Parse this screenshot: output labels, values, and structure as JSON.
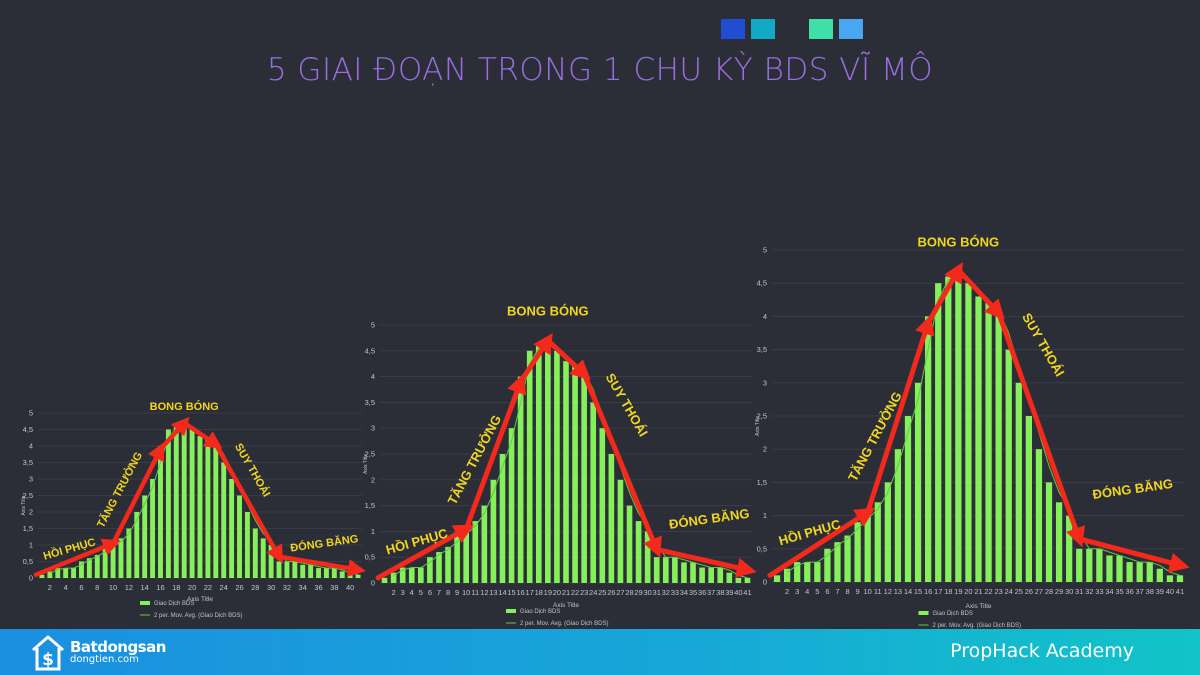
{
  "title": "5 GIAI ĐOẠN TRONG 1 CHU KỲ BDS VĨ MÔ",
  "decor_colors": [
    "#1f4ed3",
    "#11a9c4",
    "#3ee0a8",
    "#4aa6f0"
  ],
  "footer": {
    "brand_line1": "Batdongsan",
    "brand_line2": "dongtien.com",
    "academy": "PropHack Academy"
  },
  "colors": {
    "bar": "#86f05a",
    "avg": "#62c944",
    "arrow": "#f5281c",
    "label": "#f0d61e",
    "grid": "#3e4150",
    "axis_text": "#c2c4cb"
  },
  "chart_data": [
    {
      "type": "bar",
      "categories": [
        1,
        2,
        3,
        4,
        5,
        6,
        7,
        8,
        9,
        10,
        11,
        12,
        13,
        14,
        15,
        16,
        17,
        18,
        19,
        20,
        21,
        22,
        23,
        24,
        25,
        26,
        27,
        28,
        29,
        30,
        31,
        32,
        33,
        34,
        35,
        36,
        37,
        38,
        39,
        40,
        41
      ],
      "tick_labels": [
        "2",
        "4",
        "6",
        "8",
        "10",
        "12",
        "14",
        "16",
        "18",
        "20",
        "22",
        "24",
        "26",
        "28",
        "30",
        "32",
        "34",
        "36",
        "38",
        "40"
      ],
      "values": [
        0.1,
        0.2,
        0.3,
        0.3,
        0.3,
        0.5,
        0.6,
        0.7,
        0.9,
        1.0,
        1.2,
        1.5,
        2.0,
        2.5,
        3.0,
        4.0,
        4.5,
        4.6,
        4.6,
        4.5,
        4.3,
        4.2,
        4.0,
        3.5,
        3.0,
        2.5,
        2.0,
        1.5,
        1.2,
        1.0,
        0.5,
        0.5,
        0.5,
        0.4,
        0.4,
        0.3,
        0.3,
        0.3,
        0.2,
        0.1,
        0.1
      ],
      "ylim": [
        0,
        5
      ],
      "yticks": [
        "0",
        "0,5",
        "1",
        "1,5",
        "2",
        "2,5",
        "3",
        "3,5",
        "4",
        "4,5",
        "5"
      ],
      "xlabel": "Axis Title",
      "ylabel": "Axis Title",
      "legend": [
        "Giao Dịch BDS",
        "2 per. Mov. Avg. (Giao Dịch BDS)"
      ],
      "phases": [
        "HỒI PHỤC",
        "TĂNG TRƯỞNG",
        "BONG BÓNG",
        "SUY THOÁI",
        "ĐÓNG BĂNG"
      ]
    },
    {
      "type": "bar",
      "categories": [
        1,
        2,
        3,
        4,
        5,
        6,
        7,
        8,
        9,
        10,
        11,
        12,
        13,
        14,
        15,
        16,
        17,
        18,
        19,
        20,
        21,
        22,
        23,
        24,
        25,
        26,
        27,
        28,
        29,
        30,
        31,
        32,
        33,
        34,
        35,
        36,
        37,
        38,
        39,
        40,
        41
      ],
      "tick_labels": [
        "2",
        "3",
        "4",
        "5",
        "6",
        "7",
        "8",
        "9",
        "10",
        "11",
        "12",
        "13",
        "14",
        "15",
        "16",
        "17",
        "18",
        "19",
        "20",
        "21",
        "22",
        "23",
        "24",
        "25",
        "26",
        "27",
        "28",
        "29",
        "30",
        "31",
        "32",
        "33",
        "34",
        "35",
        "36",
        "37",
        "38",
        "39",
        "40",
        "41"
      ],
      "values": [
        0.1,
        0.2,
        0.3,
        0.3,
        0.3,
        0.5,
        0.6,
        0.7,
        0.9,
        1.0,
        1.2,
        1.5,
        2.0,
        2.5,
        3.0,
        4.0,
        4.5,
        4.6,
        4.6,
        4.5,
        4.3,
        4.2,
        4.0,
        3.5,
        3.0,
        2.5,
        2.0,
        1.5,
        1.2,
        1.0,
        0.5,
        0.5,
        0.5,
        0.4,
        0.4,
        0.3,
        0.3,
        0.3,
        0.2,
        0.1,
        0.1
      ],
      "ylim": [
        0,
        5
      ],
      "yticks": [
        "0",
        "0,5",
        "1",
        "1,5",
        "2",
        "2,5",
        "3",
        "3,5",
        "4",
        "4,5",
        "5"
      ],
      "xlabel": "Axis Title",
      "ylabel": "Axis Title",
      "legend": [
        "Giao Dịch BDS",
        "2 per. Mov. Avg. (Giao Dịch BDS)"
      ],
      "phases": [
        "HỒI PHỤC",
        "TĂNG TRƯỞNG",
        "BONG BÓNG",
        "SUY THOÁI",
        "ĐÓNG BĂNG"
      ]
    },
    {
      "type": "bar",
      "categories": [
        1,
        2,
        3,
        4,
        5,
        6,
        7,
        8,
        9,
        10,
        11,
        12,
        13,
        14,
        15,
        16,
        17,
        18,
        19,
        20,
        21,
        22,
        23,
        24,
        25,
        26,
        27,
        28,
        29,
        30,
        31,
        32,
        33,
        34,
        35,
        36,
        37,
        38,
        39,
        40,
        41
      ],
      "tick_labels": [
        "2",
        "3",
        "4",
        "5",
        "6",
        "7",
        "8",
        "9",
        "10",
        "11",
        "12",
        "13",
        "14",
        "15",
        "16",
        "17",
        "18",
        "19",
        "20",
        "21",
        "22",
        "23",
        "24",
        "25",
        "26",
        "27",
        "28",
        "29",
        "30",
        "31",
        "32",
        "33",
        "34",
        "35",
        "36",
        "37",
        "38",
        "39",
        "40",
        "41"
      ],
      "values": [
        0.1,
        0.2,
        0.3,
        0.3,
        0.3,
        0.5,
        0.6,
        0.7,
        0.9,
        1.0,
        1.2,
        1.5,
        2.0,
        2.5,
        3.0,
        4.0,
        4.5,
        4.6,
        4.6,
        4.5,
        4.3,
        4.2,
        4.0,
        3.5,
        3.0,
        2.5,
        2.0,
        1.5,
        1.2,
        1.0,
        0.5,
        0.5,
        0.5,
        0.4,
        0.4,
        0.3,
        0.3,
        0.3,
        0.2,
        0.1,
        0.1
      ],
      "ylim": [
        0,
        5
      ],
      "yticks": [
        "0",
        "0,5",
        "1",
        "1,5",
        "2",
        "2,5",
        "3",
        "3,5",
        "4",
        "4,5",
        "5"
      ],
      "xlabel": "Axis Title",
      "ylabel": "Axis Title",
      "legend": [
        "Giao Dịch BDS",
        "2 per. Mov. Avg. (Giao Dịch BDS)"
      ],
      "phases": [
        "HỒI PHỤC",
        "TĂNG TRƯỞNG",
        "BONG BÓNG",
        "SUY THOÁI",
        "ĐÓNG BĂNG"
      ]
    }
  ]
}
